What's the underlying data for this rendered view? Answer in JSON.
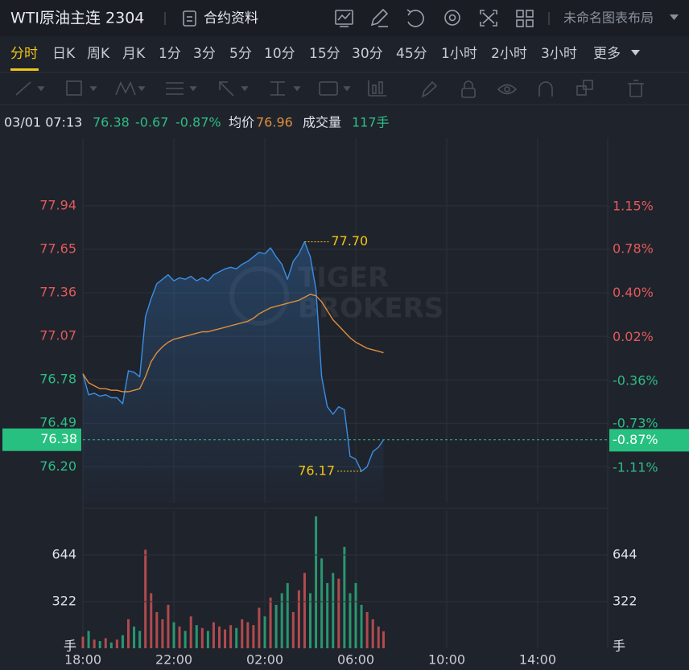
{
  "header": {
    "title": "WTI原油主连 2304",
    "contract_info": "合约资料",
    "layout_name": "未命名图表布局"
  },
  "periods": {
    "items": [
      "分时",
      "日K",
      "周K",
      "月K",
      "1分",
      "3分",
      "5分",
      "10分",
      "15分",
      "30分",
      "45分",
      "1小时",
      "2小时",
      "3小时",
      "更多"
    ],
    "active": 0
  },
  "info": {
    "time": "03/01 07:13",
    "change": "-0.67",
    "avg_label": "均价",
    "avg": "76.96",
    "volume_label": "成交量",
    "volume": "117手"
  },
  "chart_data": [
    {
      "type": "line",
      "x": [
        0,
        0.25,
        0.5,
        0.75,
        1,
        1.25,
        1.5,
        1.75,
        2,
        2.25,
        2.5,
        2.75,
        3,
        3.25,
        3.5,
        3.75,
        4,
        4.25,
        4.5,
        4.75,
        5,
        5.25,
        5.5,
        5.75,
        6,
        6.25,
        6.5,
        6.75,
        7,
        7.25,
        7.5,
        7.75,
        8,
        8.25,
        8.5,
        8.75,
        9,
        9.25,
        9.5,
        9.75,
        10,
        10.25,
        10.5,
        10.75,
        11,
        11.25,
        11.5,
        11.75,
        12,
        12.25,
        12.5,
        12.75,
        13,
        13.22
      ],
      "series": [
        {
          "color": "#3a8ee6",
          "fill": true,
          "values": [
            76.82,
            76.68,
            76.69,
            76.67,
            76.68,
            76.66,
            76.66,
            76.62,
            76.84,
            76.83,
            76.8,
            77.2,
            77.32,
            77.42,
            77.45,
            77.48,
            77.44,
            77.46,
            77.45,
            77.47,
            77.44,
            77.46,
            77.44,
            77.48,
            77.5,
            77.52,
            77.53,
            77.52,
            77.55,
            77.57,
            77.6,
            77.63,
            77.62,
            77.66,
            77.6,
            77.55,
            77.45,
            77.57,
            77.62,
            77.7,
            77.6,
            77.38,
            76.8,
            76.6,
            76.55,
            76.6,
            76.58,
            76.27,
            76.25,
            76.17,
            76.2,
            76.3,
            76.33,
            76.38
          ]
        },
        {
          "color": "#de8f3c",
          "fill": false,
          "values": [
            76.82,
            76.76,
            76.74,
            76.72,
            76.72,
            76.71,
            76.71,
            76.7,
            76.7,
            76.71,
            76.72,
            76.8,
            76.9,
            76.96,
            77.0,
            77.03,
            77.05,
            77.06,
            77.07,
            77.08,
            77.09,
            77.1,
            77.1,
            77.11,
            77.12,
            77.13,
            77.14,
            77.15,
            77.16,
            77.17,
            77.19,
            77.22,
            77.24,
            77.26,
            77.27,
            77.28,
            77.29,
            77.3,
            77.31,
            77.33,
            77.35,
            77.34,
            77.3,
            77.24,
            77.18,
            77.14,
            77.1,
            77.06,
            77.03,
            77.01,
            76.99,
            76.98,
            76.97,
            76.96
          ]
        }
      ],
      "xlim": [
        0,
        23.08
      ],
      "xticks": [
        {
          "value": 0,
          "label": "18:00"
        },
        {
          "value": 4,
          "label": "22:00"
        },
        {
          "value": 8,
          "label": "02:00"
        },
        {
          "value": 12,
          "label": "06:00"
        },
        {
          "value": 16,
          "label": "10:00"
        },
        {
          "value": 20,
          "label": "14:00"
        }
      ],
      "ylim": [
        75.96,
        78.39
      ],
      "yticks": [
        77.94,
        77.65,
        77.36,
        77.07,
        76.78,
        76.49,
        {
          "value": 76.2,
          "label": "76.20"
        }
      ],
      "y2lim": [
        -1.41,
        1.74
      ],
      "y2ticks": [
        {
          "value": 1.15,
          "label": "1.15%"
        },
        {
          "value": 0.78,
          "label": "0.78%"
        },
        {
          "value": 0.4,
          "label": "0.40%"
        },
        {
          "value": 0.02,
          "label": "0.02%"
        },
        {
          "value": -0.36,
          "label": "-0.36%"
        },
        {
          "value": -0.73,
          "label": "-0.73%"
        },
        {
          "value": -1.11,
          "label": "-1.11%"
        }
      ],
      "current": {
        "value": 76.38,
        "label": "76.38",
        "pct": -0.87,
        "pct_label": "-0.87%"
      },
      "annotations": [
        {
          "x": 9.75,
          "y": 77.7,
          "label": "77.70",
          "side": "right"
        },
        {
          "x": 12.25,
          "y": 76.17,
          "label": "76.17",
          "side": "left"
        }
      ],
      "up_color": "#e25a5a",
      "down_color": "#2ebd85",
      "grid": true,
      "watermark": [
        "TIGER",
        "BROKERS"
      ]
    },
    {
      "type": "bar",
      "x": [
        0,
        0.25,
        0.5,
        0.75,
        1,
        1.25,
        1.5,
        1.75,
        2,
        2.25,
        2.5,
        2.75,
        3,
        3.25,
        3.5,
        3.75,
        4,
        4.25,
        4.5,
        4.75,
        5,
        5.25,
        5.5,
        5.75,
        6,
        6.25,
        6.5,
        6.75,
        7,
        7.25,
        7.5,
        7.75,
        8,
        8.25,
        8.5,
        8.75,
        9,
        9.25,
        9.5,
        9.75,
        10,
        10.25,
        10.5,
        10.75,
        11,
        11.25,
        11.5,
        11.75,
        12,
        12.25,
        12.5,
        12.75,
        13,
        13.22
      ],
      "values": [
        80,
        120,
        60,
        50,
        70,
        40,
        60,
        90,
        200,
        150,
        120,
        680,
        380,
        250,
        200,
        300,
        180,
        150,
        120,
        220,
        160,
        140,
        120,
        180,
        150,
        130,
        160,
        140,
        200,
        180,
        160,
        280,
        220,
        350,
        300,
        380,
        450,
        250,
        400,
        520,
        380,
        910,
        620,
        450,
        520,
        480,
        700,
        380,
        450,
        300,
        250,
        200,
        150,
        117
      ],
      "xlim": [
        0,
        23.08
      ],
      "xticks": [
        {
          "value": 0,
          "label": "18:00"
        },
        {
          "value": 4,
          "label": "22:00"
        },
        {
          "value": 8,
          "label": "02:00"
        },
        {
          "value": 12,
          "label": "06:00"
        },
        {
          "value": 16,
          "label": "10:00"
        },
        {
          "value": 20,
          "label": "14:00"
        }
      ],
      "ylim": [
        0,
        949
      ],
      "yticks": [
        {
          "value": 0,
          "label": "手"
        },
        322,
        644
      ],
      "up_color": "#e25a5a",
      "down_color": "#2ebd85",
      "grid": true
    }
  ]
}
